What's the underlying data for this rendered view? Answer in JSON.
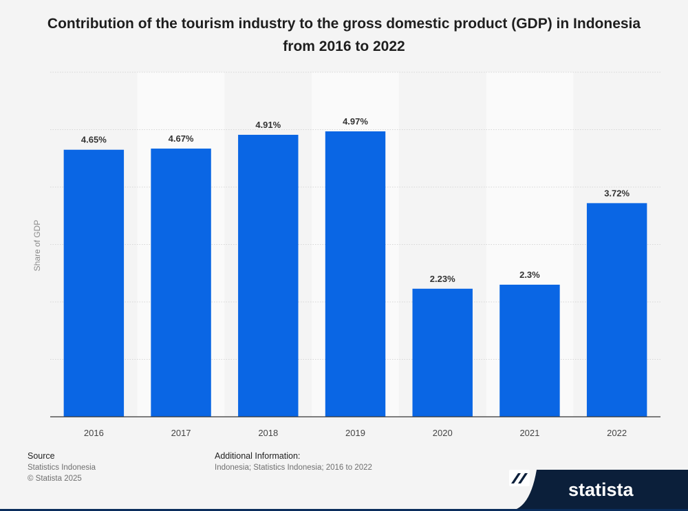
{
  "title": "Contribution of the tourism industry to the gross domestic product (GDP) in Indonesia from 2016 to 2022",
  "footer": {
    "source_heading": "Source",
    "source_lines": [
      "Statistics Indonesia",
      "© Statista 2025"
    ],
    "info_heading": "Additional Information:",
    "info_text": "Indonesia; Statistics Indonesia; 2016 to 2022"
  },
  "brand": {
    "name": "statista",
    "color": "#0b1f3a"
  },
  "chart_data": {
    "type": "bar",
    "categories": [
      "2016",
      "2017",
      "2018",
      "2019",
      "2020",
      "2021",
      "2022"
    ],
    "values": [
      4.65,
      4.67,
      4.91,
      4.97,
      2.23,
      2.3,
      3.72
    ],
    "value_labels": [
      "4.65%",
      "4.67%",
      "4.91%",
      "4.97%",
      "2.23%",
      "2.3%",
      "3.72%"
    ],
    "ylabel": "Share of GDP",
    "ylim": [
      0,
      6
    ],
    "grid": true,
    "bar_color": "#0a66e4"
  }
}
